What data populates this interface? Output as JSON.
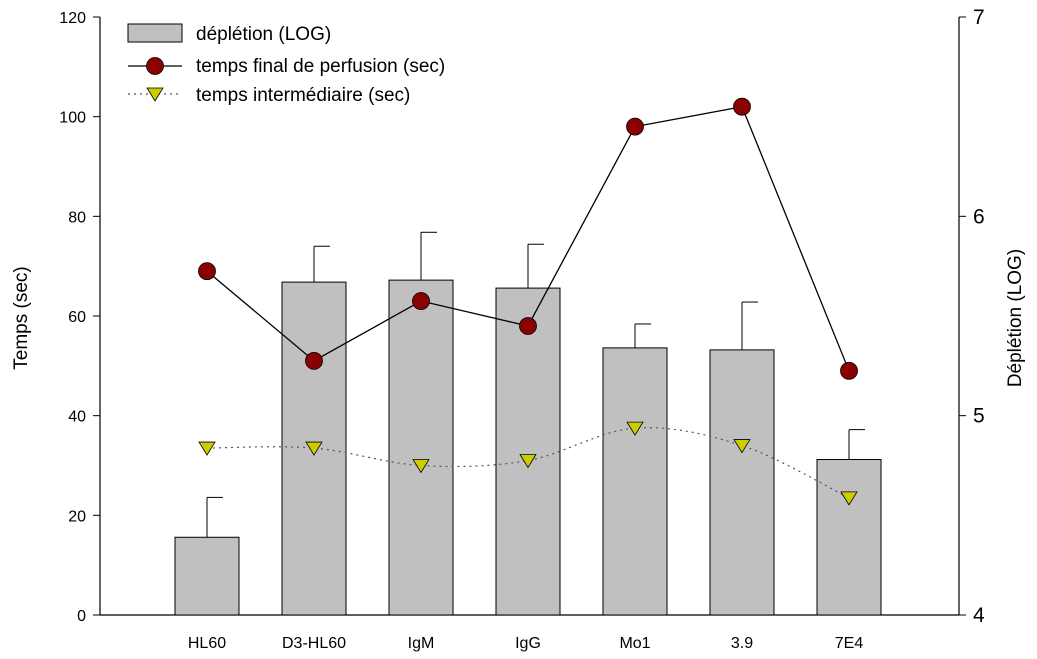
{
  "chart_data": {
    "type": "bar",
    "categories": [
      "HL60",
      "D3-HL60",
      "IgM",
      "IgG",
      "Mo1",
      "3.9",
      "7E4"
    ],
    "ylabel": "Temps (sec)",
    "y2label": "Déplétion (LOG)",
    "ylim": [
      0,
      120
    ],
    "y2lim": [
      4,
      7
    ],
    "yticks": [
      0,
      20,
      40,
      60,
      80,
      100,
      120
    ],
    "y2ticks": [
      4,
      5,
      6,
      7
    ],
    "bar_series": {
      "name": "déplétion (LOG)",
      "axis": "right",
      "values": [
        4.39,
        5.67,
        5.68,
        5.64,
        5.34,
        5.33,
        4.78
      ],
      "error_upper": [
        4.59,
        5.85,
        5.92,
        5.86,
        5.46,
        5.57,
        4.93
      ],
      "color": "#c0c0c0"
    },
    "series": [
      {
        "name": "temps final de perfusion (sec)",
        "axis": "left",
        "style": "solid-line-circle",
        "color": "#8b0000",
        "values": [
          69,
          51,
          63,
          58,
          98,
          102,
          49
        ]
      },
      {
        "name": "temps intermédiaire (sec)",
        "axis": "left",
        "style": "dotted-line-triangle",
        "color": "#cccc00",
        "values": [
          33.5,
          33.5,
          30,
          31,
          37.5,
          34,
          23.5
        ]
      }
    ],
    "legend_position": "top-left"
  }
}
